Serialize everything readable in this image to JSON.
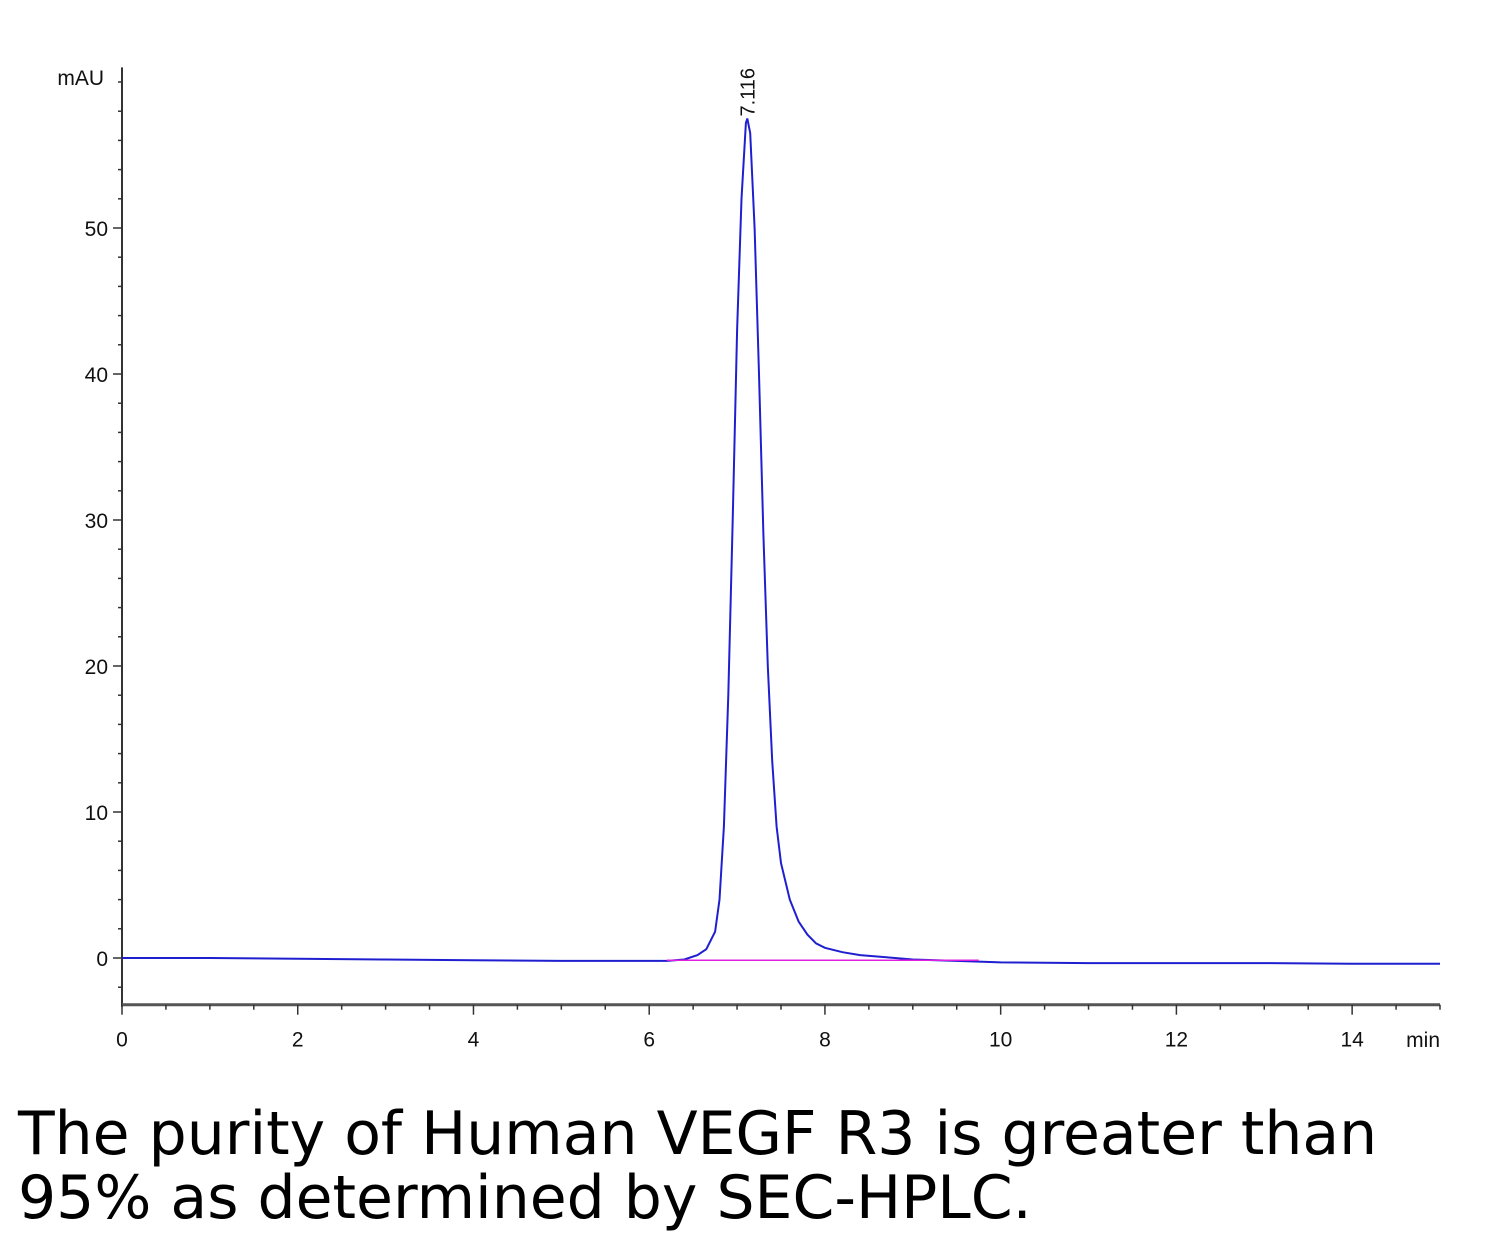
{
  "chart_data": {
    "type": "line",
    "title": "",
    "xlabel": "min",
    "ylabel": "mAU",
    "xlim": [
      0,
      15
    ],
    "ylim": [
      -3.2,
      61
    ],
    "x_ticks": [
      0,
      2,
      4,
      6,
      8,
      10,
      12,
      14
    ],
    "y_ticks": [
      0,
      10,
      20,
      30,
      40,
      50
    ],
    "grid": false,
    "legend": "none",
    "series": [
      {
        "color": "#1f1fd0",
        "x": [
          0,
          1,
          2,
          3,
          4,
          5,
          5.5,
          6.0,
          6.2,
          6.4,
          6.55,
          6.65,
          6.75,
          6.8,
          6.85,
          6.9,
          6.95,
          7.0,
          7.05,
          7.1,
          7.116,
          7.15,
          7.2,
          7.25,
          7.3,
          7.35,
          7.4,
          7.45,
          7.5,
          7.6,
          7.7,
          7.8,
          7.9,
          8.0,
          8.2,
          8.4,
          8.7,
          9.0,
          9.5,
          10,
          11,
          12,
          13,
          14,
          15
        ],
        "y": [
          0,
          0,
          -0.05,
          -0.1,
          -0.15,
          -0.2,
          -0.2,
          -0.2,
          -0.2,
          -0.1,
          0.2,
          0.6,
          1.8,
          4.0,
          9.0,
          18.0,
          30.0,
          43.0,
          52.0,
          57.2,
          57.5,
          56.5,
          50.0,
          40.0,
          29.0,
          20.0,
          13.5,
          9.0,
          6.5,
          4.0,
          2.5,
          1.6,
          1.0,
          0.7,
          0.4,
          0.2,
          0.05,
          -0.1,
          -0.2,
          -0.3,
          -0.35,
          -0.35,
          -0.35,
          -0.4,
          -0.4
        ]
      },
      {
        "color": "#e020e0",
        "x": [
          6.2,
          9.75
        ],
        "y": [
          -0.15,
          -0.15
        ]
      }
    ],
    "annotations": [
      {
        "text": "7.116",
        "x": 7.116,
        "y": 57.5
      }
    ]
  },
  "caption": {
    "line1": "The purity of Human VEGF R3 is greater than",
    "line2": "95% as determined by SEC-HPLC."
  }
}
